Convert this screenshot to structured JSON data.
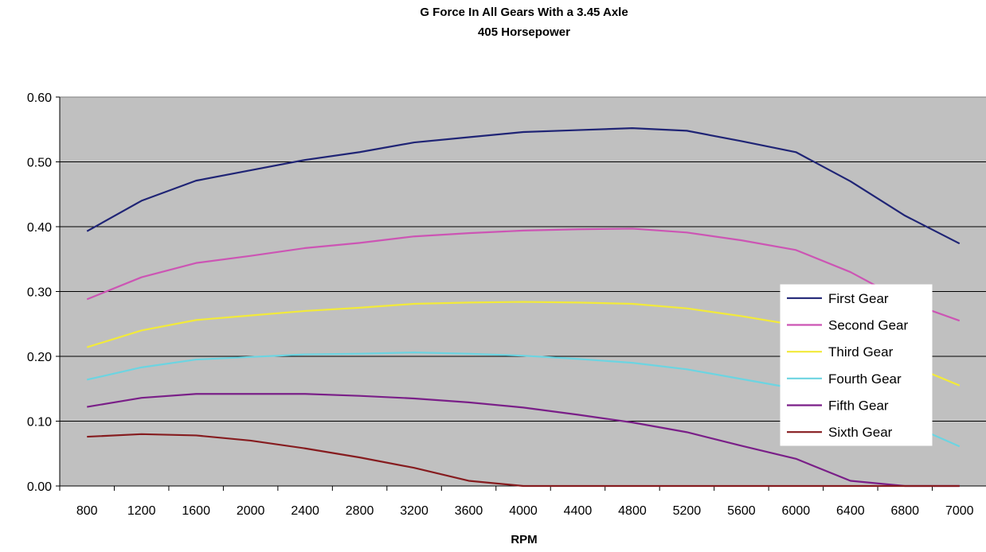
{
  "chart_data": {
    "type": "line",
    "title": "G Force In All Gears With a 3.45 Axle",
    "subtitle": "405 Horsepower",
    "xlabel": "RPM",
    "ylabel": "",
    "ylim": [
      0,
      0.6
    ],
    "yticks": [
      "0.00",
      "0.10",
      "0.20",
      "0.30",
      "0.40",
      "0.50",
      "0.60"
    ],
    "categories": [
      "800",
      "1200",
      "1600",
      "2000",
      "2400",
      "2800",
      "3200",
      "3600",
      "4000",
      "4400",
      "4800",
      "5200",
      "5600",
      "6000",
      "6400",
      "6800",
      "7000"
    ],
    "grid": true,
    "plot_background": "#c0c0c0",
    "legend_position": "right",
    "series": [
      {
        "name": "First Gear",
        "color": "#1f2475",
        "values": [
          0.393,
          0.44,
          0.471,
          0.487,
          0.503,
          0.515,
          0.53,
          0.538,
          0.546,
          0.549,
          0.552,
          0.548,
          0.532,
          0.515,
          0.47,
          0.417,
          0.374
        ]
      },
      {
        "name": "Second Gear",
        "color": "#cc55b4",
        "values": [
          0.288,
          0.322,
          0.344,
          0.355,
          0.367,
          0.375,
          0.385,
          0.39,
          0.394,
          0.396,
          0.397,
          0.391,
          0.379,
          0.364,
          0.33,
          0.285,
          0.255
        ]
      },
      {
        "name": "Third Gear",
        "color": "#f2ea3a",
        "values": [
          0.214,
          0.24,
          0.256,
          0.263,
          0.27,
          0.275,
          0.281,
          0.283,
          0.284,
          0.283,
          0.281,
          0.274,
          0.262,
          0.248,
          0.222,
          0.19,
          0.155
        ]
      },
      {
        "name": "Fourth Gear",
        "color": "#6cd4e1",
        "values": [
          0.164,
          0.183,
          0.195,
          0.199,
          0.203,
          0.204,
          0.206,
          0.204,
          0.201,
          0.196,
          0.19,
          0.18,
          0.165,
          0.15,
          0.128,
          0.098,
          0.061
        ]
      },
      {
        "name": "Fifth Gear",
        "color": "#7a1f88",
        "values": [
          0.122,
          0.136,
          0.142,
          0.142,
          0.142,
          0.139,
          0.135,
          0.129,
          0.121,
          0.11,
          0.098,
          0.083,
          0.062,
          0.042,
          0.008,
          0.0,
          0.0
        ]
      },
      {
        "name": "Sixth Gear",
        "color": "#861c1f",
        "values": [
          0.076,
          0.08,
          0.078,
          0.07,
          0.058,
          0.044,
          0.028,
          0.008,
          0.0,
          0.0,
          0.0,
          0.0,
          0.0,
          0.0,
          0.0,
          0.0,
          0.0
        ]
      }
    ]
  }
}
